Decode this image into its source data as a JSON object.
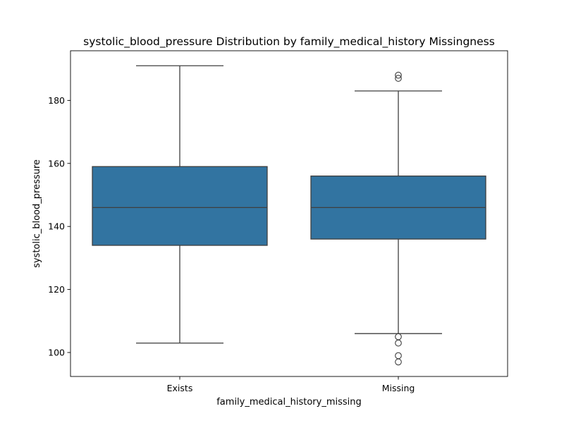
{
  "chart_data": {
    "type": "boxplot",
    "title": "systolic_blood_pressure Distribution by family_medical_history Missingness",
    "xlabel": "family_medical_history_missing",
    "ylabel": "systolic_blood_pressure",
    "ylim": [
      93,
      194
    ],
    "yticks": [
      100,
      120,
      140,
      160,
      180
    ],
    "grid": false,
    "box_color": "#3274a1",
    "line_color": "#3f3f3f",
    "categories": [
      "Exists",
      "Missing"
    ],
    "boxes": [
      {
        "category": "Exists",
        "whisker_low": 103,
        "q1": 134,
        "median": 146,
        "q3": 159,
        "whisker_high": 191,
        "outliers": []
      },
      {
        "category": "Missing",
        "whisker_low": 106,
        "q1": 136,
        "median": 146,
        "q3": 156,
        "whisker_high": 183,
        "outliers": [
          188,
          187,
          105,
          103,
          99,
          97
        ]
      }
    ]
  }
}
